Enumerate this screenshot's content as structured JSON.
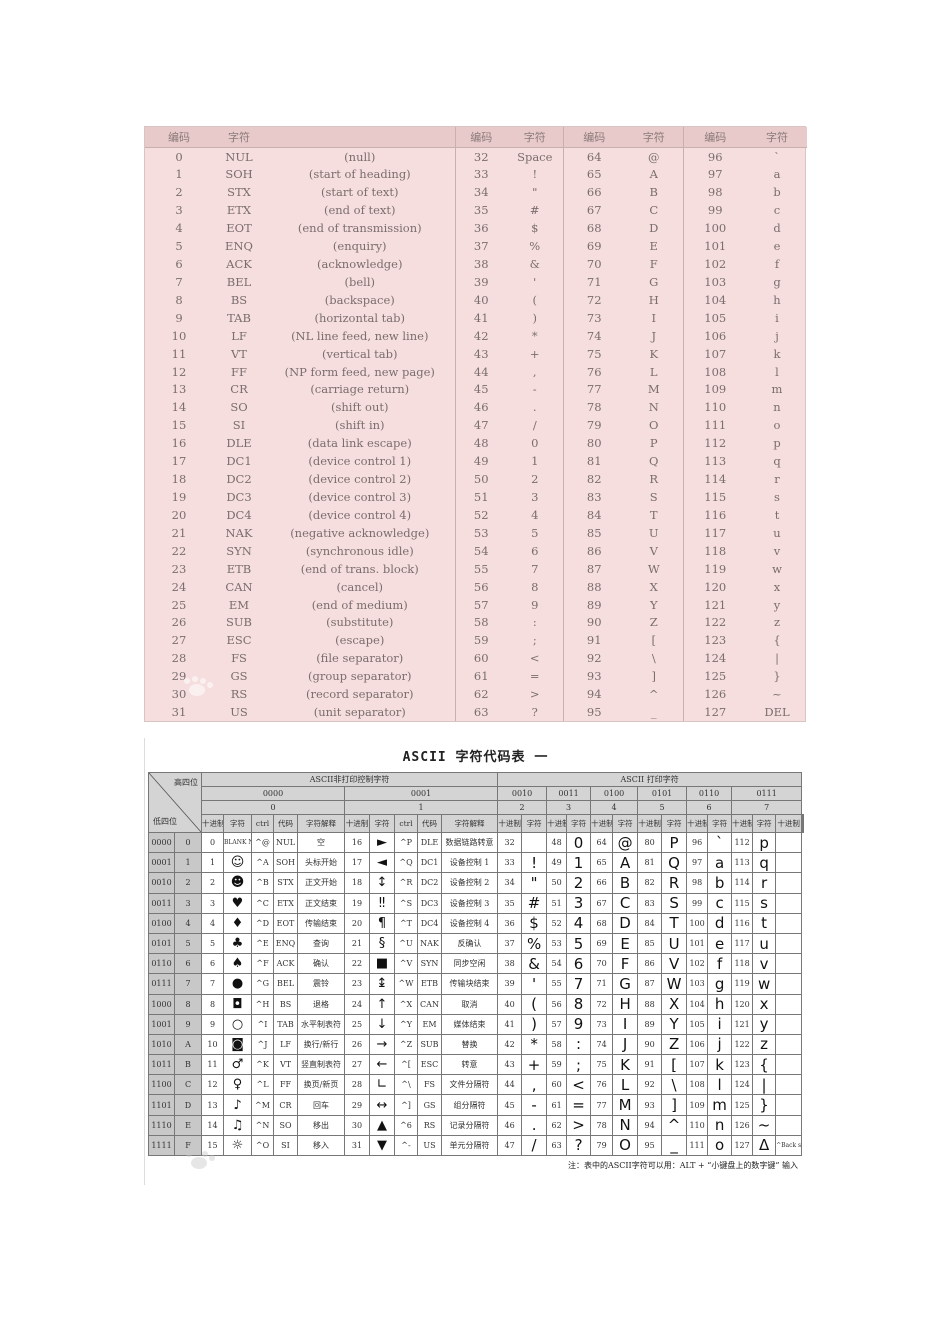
{
  "top_table": {
    "headers": {
      "code": "编码",
      "char": "字符"
    },
    "control_rows": [
      [
        "0",
        "NUL",
        "(null)"
      ],
      [
        "1",
        "SOH",
        "(start of heading)"
      ],
      [
        "2",
        "STX",
        "(start of text)"
      ],
      [
        "3",
        "ETX",
        "(end of text)"
      ],
      [
        "4",
        "EOT",
        "(end of transmission)"
      ],
      [
        "5",
        "ENQ",
        "(enquiry)"
      ],
      [
        "6",
        "ACK",
        "(acknowledge)"
      ],
      [
        "7",
        "BEL",
        "(bell)"
      ],
      [
        "8",
        "BS",
        "(backspace)"
      ],
      [
        "9",
        "TAB",
        "(horizontal tab)"
      ],
      [
        "10",
        "LF",
        "(NL line feed, new line)"
      ],
      [
        "11",
        "VT",
        "(vertical tab)"
      ],
      [
        "12",
        "FF",
        "(NP form feed, new page)"
      ],
      [
        "13",
        "CR",
        "(carriage return)"
      ],
      [
        "14",
        "SO",
        "(shift out)"
      ],
      [
        "15",
        "SI",
        "(shift in)"
      ],
      [
        "16",
        "DLE",
        "(data link escape)"
      ],
      [
        "17",
        "DC1",
        "(device control 1)"
      ],
      [
        "18",
        "DC2",
        "(device control 2)"
      ],
      [
        "19",
        "DC3",
        "(device control 3)"
      ],
      [
        "20",
        "DC4",
        "(device control 4)"
      ],
      [
        "21",
        "NAK",
        "(negative acknowledge)"
      ],
      [
        "22",
        "SYN",
        "(synchronous idle)"
      ],
      [
        "23",
        "ETB",
        "(end of trans. block)"
      ],
      [
        "24",
        "CAN",
        "(cancel)"
      ],
      [
        "25",
        "EM",
        "(end of medium)"
      ],
      [
        "26",
        "SUB",
        "(substitute)"
      ],
      [
        "27",
        "ESC",
        "(escape)"
      ],
      [
        "28",
        "FS",
        "(file separator)"
      ],
      [
        "29",
        "GS",
        "(group separator)"
      ],
      [
        "30",
        "RS",
        "(record separator)"
      ],
      [
        "31",
        "US",
        "(unit separator)"
      ]
    ],
    "printable_chars": [
      "Space",
      "!",
      "\"",
      "#",
      "$",
      "%",
      "&",
      "'",
      "(",
      ")",
      "*",
      "+",
      ",",
      "-",
      ".",
      "/",
      "0",
      "1",
      "2",
      "3",
      "4",
      "5",
      "6",
      "7",
      "8",
      "9",
      ":",
      ";",
      "<",
      "=",
      ">",
      "?",
      "@",
      "A",
      "B",
      "C",
      "D",
      "E",
      "F",
      "G",
      "H",
      "I",
      "J",
      "K",
      "L",
      "M",
      "N",
      "O",
      "P",
      "Q",
      "R",
      "S",
      "T",
      "U",
      "V",
      "W",
      "X",
      "Y",
      "Z",
      "[",
      "\\",
      "]",
      "^",
      "_",
      "`",
      "a",
      "b",
      "c",
      "d",
      "e",
      "f",
      "g",
      "h",
      "i",
      "j",
      "k",
      "l",
      "m",
      "n",
      "o",
      "p",
      "q",
      "r",
      "s",
      "t",
      "u",
      "v",
      "w",
      "x",
      "y",
      "z",
      "{",
      "|",
      "}",
      "~",
      "DEL"
    ],
    "watermark": "Bai百科"
  },
  "bottom_table": {
    "title": "ASCII 字符代码表 一",
    "corner_high": "高四位",
    "corner_low": "低四位",
    "group_control": "ASCII非打印控制字符",
    "group_printable": "ASCII 打印字符",
    "high_bin": [
      "0000",
      "0001",
      "0010",
      "0011",
      "0100",
      "0101",
      "0110",
      "0111"
    ],
    "high_hex": [
      "0",
      "1",
      "2",
      "3",
      "4",
      "5",
      "6",
      "7"
    ],
    "col_headers": {
      "dec": "十进制",
      "char": "字符",
      "ctrl": "ctrl",
      "code": "代码",
      "explain": "字符解释"
    },
    "low_bin": [
      "0000",
      "0001",
      "0010",
      "0011",
      "0100",
      "0101",
      "0110",
      "0111",
      "1000",
      "1001",
      "1010",
      "1011",
      "1100",
      "1101",
      "1110",
      "1111"
    ],
    "low_hex": [
      "0",
      "1",
      "2",
      "3",
      "4",
      "5",
      "6",
      "7",
      "8",
      "9",
      "A",
      "B",
      "C",
      "D",
      "E",
      "F"
    ],
    "control": [
      [
        "0",
        "BLANK NULL",
        "^@",
        "NUL",
        "空"
      ],
      [
        "1",
        "☺",
        "^A",
        "SOH",
        "头标开始"
      ],
      [
        "2",
        "☻",
        "^B",
        "STX",
        "正文开始"
      ],
      [
        "3",
        "♥",
        "^C",
        "ETX",
        "正文结束"
      ],
      [
        "4",
        "♦",
        "^D",
        "EOT",
        "传输结束"
      ],
      [
        "5",
        "♣",
        "^E",
        "ENQ",
        "查询"
      ],
      [
        "6",
        "♠",
        "^F",
        "ACK",
        "确认"
      ],
      [
        "7",
        "●",
        "^G",
        "BEL",
        "震铃"
      ],
      [
        "8",
        "◘",
        "^H",
        "BS",
        "退格"
      ],
      [
        "9",
        "○",
        "^I",
        "TAB",
        "水平制表符"
      ],
      [
        "10",
        "◙",
        "^J",
        "LF",
        "换行/新行"
      ],
      [
        "11",
        "♂",
        "^K",
        "VT",
        "竖直制表符"
      ],
      [
        "12",
        "♀",
        "^L",
        "FF",
        "换页/新页"
      ],
      [
        "13",
        "♪",
        "^M",
        "CR",
        "回车"
      ],
      [
        "14",
        "♫",
        "^N",
        "SO",
        "移出"
      ],
      [
        "15",
        "☼",
        "^O",
        "SI",
        "移入"
      ],
      [
        "16",
        "►",
        "^P",
        "DLE",
        "数据链路转意"
      ],
      [
        "17",
        "◄",
        "^Q",
        "DC1",
        "设备控制 1"
      ],
      [
        "18",
        "↕",
        "^R",
        "DC2",
        "设备控制 2"
      ],
      [
        "19",
        "‼",
        "^S",
        "DC3",
        "设备控制 3"
      ],
      [
        "20",
        "¶",
        "^T",
        "DC4",
        "设备控制 4"
      ],
      [
        "21",
        "§",
        "^U",
        "NAK",
        "反确认"
      ],
      [
        "22",
        "■",
        "^V",
        "SYN",
        "同步空闲"
      ],
      [
        "23",
        "↨",
        "^W",
        "ETB",
        "传输块结束"
      ],
      [
        "24",
        "↑",
        "^X",
        "CAN",
        "取消"
      ],
      [
        "25",
        "↓",
        "^Y",
        "EM",
        "媒体结束"
      ],
      [
        "26",
        "→",
        "^Z",
        "SUB",
        "替换"
      ],
      [
        "27",
        "←",
        "^[",
        "ESC",
        "转意"
      ],
      [
        "28",
        "∟",
        "^\\",
        "FS",
        "文件分隔符"
      ],
      [
        "29",
        "↔",
        "^]",
        "GS",
        "组分隔符"
      ],
      [
        "30",
        "▲",
        "^6",
        "RS",
        "记录分隔符"
      ],
      [
        "31",
        "▼",
        "^-",
        "US",
        "单元分隔符"
      ]
    ],
    "del_ctrl": "^Back space",
    "del_char": "Δ",
    "note": "注：表中的ASCII字符可以用：ALT + “小键盘上的数字键” 输入",
    "watermark": "Bai百科"
  }
}
